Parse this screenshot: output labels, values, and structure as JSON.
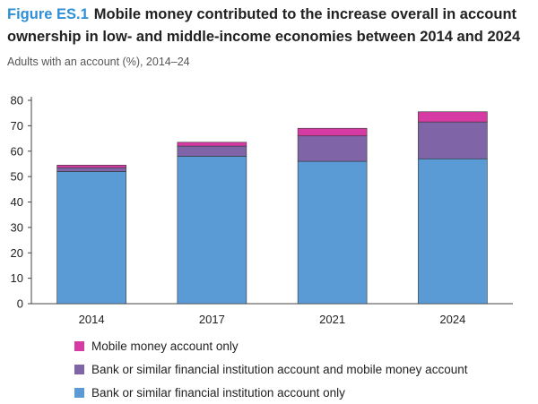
{
  "header": {
    "figure_label": "Figure ES.1",
    "title_line1": "Mobile money contributed to the increase overall in account",
    "title_line2": "ownership in low- and middle-income economies between 2014 and 2024",
    "subtitle": "Adults with an account (%), 2014–24"
  },
  "chart_data": {
    "type": "bar",
    "stacked": true,
    "categories": [
      "2014",
      "2017",
      "2021",
      "2024"
    ],
    "series": [
      {
        "name": "Bank or similar financial institution account only",
        "values": [
          52,
          58,
          56,
          57
        ],
        "color": "#5b9bd5"
      },
      {
        "name": "Bank or similar financial institution account and mobile money account",
        "values": [
          1.5,
          4,
          10,
          14.5
        ],
        "color": "#8064a8"
      },
      {
        "name": "Mobile money account only",
        "values": [
          1,
          1.5,
          3,
          4
        ],
        "color": "#d63ba3"
      }
    ],
    "ylim": [
      0,
      80
    ],
    "yticks": [
      "0",
      "10",
      "20",
      "30",
      "40",
      "50",
      "60",
      "70",
      "80"
    ],
    "grid": false,
    "legend_position": "bottom"
  },
  "legend": {
    "items": [
      {
        "label": "Mobile money account only",
        "color": "#d63ba3"
      },
      {
        "label": "Bank or similar financial institution account and mobile money account",
        "color": "#8064a8"
      },
      {
        "label": "Bank or similar financial institution account only",
        "color": "#5b9bd5"
      }
    ]
  }
}
